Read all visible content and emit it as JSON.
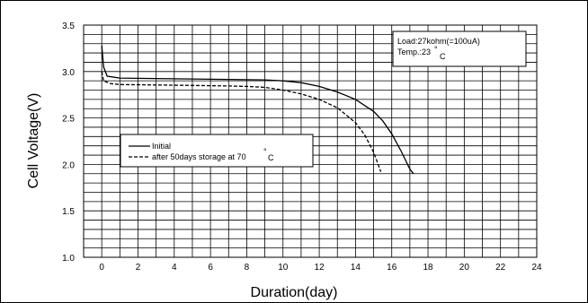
{
  "chart_data": {
    "type": "line",
    "title": "",
    "xlabel": "Duration(day)",
    "ylabel": "Cell Voltage(V)",
    "xlim": [
      -1,
      24
    ],
    "ylim": [
      1.0,
      3.5
    ],
    "x_ticks": [
      "0",
      "2",
      "4",
      "6",
      "8",
      "10",
      "12",
      "14",
      "16",
      "18",
      "20",
      "22",
      "24"
    ],
    "y_ticks": [
      "1.0",
      "1.5",
      "2.0",
      "2.5",
      "3.0",
      "3.5"
    ],
    "grid": true,
    "legend_position": "center-left",
    "series": [
      {
        "name": "Initial",
        "style": "solid",
        "color": "#000000",
        "points": [
          [
            0.0,
            3.28
          ],
          [
            0.1,
            3.05
          ],
          [
            0.3,
            2.95
          ],
          [
            1,
            2.93
          ],
          [
            3,
            2.925
          ],
          [
            5,
            2.92
          ],
          [
            7,
            2.915
          ],
          [
            9,
            2.91
          ],
          [
            10,
            2.9
          ],
          [
            11,
            2.88
          ],
          [
            12,
            2.84
          ],
          [
            13,
            2.78
          ],
          [
            14,
            2.7
          ],
          [
            15,
            2.57
          ],
          [
            15.5,
            2.47
          ],
          [
            16,
            2.33
          ],
          [
            16.5,
            2.15
          ],
          [
            17.0,
            1.95
          ],
          [
            17.2,
            1.9
          ]
        ]
      },
      {
        "name": "after 50days storage at 70 °C",
        "style": "dashed",
        "color": "#000000",
        "points": [
          [
            0.0,
            3.0
          ],
          [
            0.1,
            2.9
          ],
          [
            0.5,
            2.87
          ],
          [
            1,
            2.86
          ],
          [
            3,
            2.855
          ],
          [
            5,
            2.85
          ],
          [
            7,
            2.845
          ],
          [
            8,
            2.84
          ],
          [
            9,
            2.83
          ],
          [
            10,
            2.8
          ],
          [
            11,
            2.76
          ],
          [
            12,
            2.7
          ],
          [
            13,
            2.61
          ],
          [
            14,
            2.45
          ],
          [
            14.5,
            2.32
          ],
          [
            15,
            2.13
          ],
          [
            15.4,
            1.92
          ]
        ]
      }
    ],
    "annotation": {
      "line1": "Load:27kohm(=100uA)",
      "line2_prefix": "Temp.:23",
      "degree": "°",
      "line2_suffix": "C"
    },
    "legend": {
      "initial_label": "Initial",
      "stored_label_prefix": "after 50days storage at 70",
      "degree": "°",
      "stored_label_suffix": "C"
    }
  }
}
